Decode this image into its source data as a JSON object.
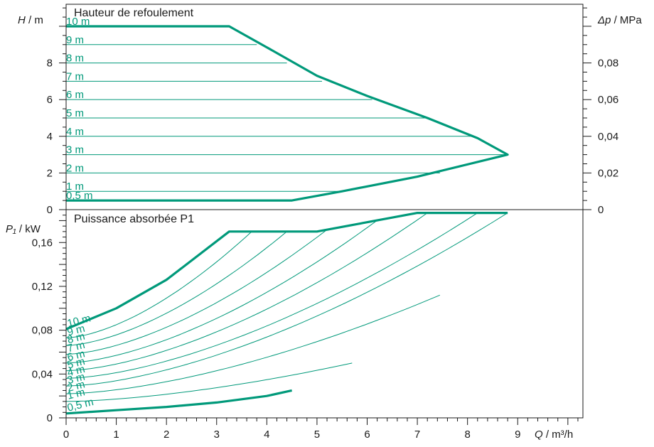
{
  "colors": {
    "curve": "#00997a",
    "axis": "#1a1a1a",
    "background": "#ffffff"
  },
  "chart_data": [
    {
      "type": "line",
      "title": "Hauteur de refoulement",
      "ylabel_italic": "H",
      "ylabel_unit": " / m",
      "y2label_italic": "Δp",
      "y2label_unit": " / MPa",
      "xlim": [
        0,
        10.3
      ],
      "ylim": [
        0,
        11.2
      ],
      "y_ticks": [
        0,
        2,
        4,
        6,
        8
      ],
      "y_tick_labels": [
        "0",
        "2",
        "4",
        "6",
        "8"
      ],
      "y2_ticks": [
        0,
        2,
        4,
        6,
        8
      ],
      "y2_tick_labels": [
        "0",
        "0,02",
        "0,04",
        "0,06",
        "0,08"
      ],
      "envelope": {
        "x": [
          0,
          3.25,
          4,
          5,
          6,
          7.2,
          8.2,
          8.8,
          7,
          5.5,
          4.5,
          0
        ],
        "y": [
          10,
          10,
          8.85,
          7.3,
          6.2,
          5.0,
          3.9,
          3.0,
          1.8,
          1.0,
          0.5,
          0.5
        ]
      },
      "setting_lines": [
        {
          "label": "10 m",
          "h": 10,
          "x_end": 3.25
        },
        {
          "label": "9 m",
          "h": 9,
          "x_end": 3.8
        },
        {
          "label": "8 m",
          "h": 8,
          "x_end": 4.4
        },
        {
          "label": "7 m",
          "h": 7,
          "x_end": 5.1
        },
        {
          "label": "6 m",
          "h": 6,
          "x_end": 6.1
        },
        {
          "label": "5 m",
          "h": 5,
          "x_end": 7.2
        },
        {
          "label": "4 m",
          "h": 4,
          "x_end": 8.15
        },
        {
          "label": "3 m",
          "h": 3,
          "x_end": 8.8
        },
        {
          "label": "2 m",
          "h": 2,
          "x_end": 7.45
        },
        {
          "label": "1 m",
          "h": 1,
          "x_end": 5.5
        },
        {
          "label": "0,5 m",
          "h": 0.5,
          "x_end": 4.5
        }
      ]
    },
    {
      "type": "line",
      "title": "Puissance absorbée P1",
      "ylabel_italic": "P₁",
      "ylabel_unit": " / kW",
      "xlabel_italic": "Q",
      "xlabel_unit": " / m³/h",
      "xlim": [
        0,
        10.3
      ],
      "ylim": [
        0,
        0.19
      ],
      "x_ticks": [
        0,
        1,
        2,
        3,
        4,
        5,
        6,
        7,
        8,
        9
      ],
      "x_tick_labels": [
        "0",
        "1",
        "2",
        "3",
        "4",
        "5",
        "6",
        "7",
        "8",
        "9"
      ],
      "y_ticks": [
        0,
        0.04,
        0.08,
        0.12,
        0.16
      ],
      "y_tick_labels": [
        "0",
        "0,04",
        "0,08",
        "0,12",
        "0,16"
      ],
      "envelope": {
        "x": [
          0,
          1,
          2,
          3.25,
          5,
          7,
          8.8
        ],
        "y": [
          0.081,
          0.1,
          0.126,
          0.17,
          0.17,
          0.187,
          0.187
        ]
      },
      "curve_end_x": [
        3.25,
        3.7,
        4.4,
        5.2,
        6.2,
        7.2,
        8.2,
        8.8,
        7.45,
        5.7,
        4.5
      ],
      "min_curve": {
        "x": [
          0,
          1,
          2,
          3,
          4,
          4.5
        ],
        "y": [
          0.004,
          0.007,
          0.01,
          0.014,
          0.02,
          0.025
        ]
      },
      "curve_labels": [
        "10 m",
        "9 m",
        "8 m",
        "7 m",
        "6 m",
        "5 m",
        "4 m",
        "3 m",
        "2 m",
        "1 m",
        "0,5 m"
      ]
    }
  ]
}
